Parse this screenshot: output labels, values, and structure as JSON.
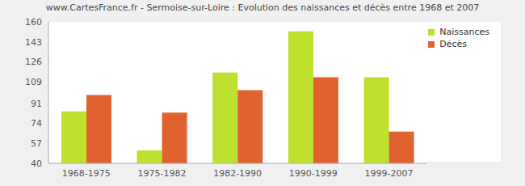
{
  "chart_data": {
    "type": "bar",
    "title": "www.CartesFrance.fr - Sermoise-sur-Loire : Evolution des naissances et décès entre 1968 et 2007",
    "categories": [
      "1968-1975",
      "1975-1982",
      "1982-1990",
      "1990-1999",
      "1999-2007"
    ],
    "series": [
      {
        "name": "Naissances",
        "color": "#bde12e",
        "values": [
          84,
          51,
          117,
          152,
          113
        ]
      },
      {
        "name": "Décès",
        "color": "#e0632f",
        "values": [
          98,
          83,
          102,
          113,
          67
        ]
      }
    ],
    "ylim": [
      40,
      160
    ],
    "yticks": [
      40,
      57,
      74,
      91,
      109,
      126,
      143,
      160
    ],
    "grid": true,
    "legend": "upper right"
  }
}
